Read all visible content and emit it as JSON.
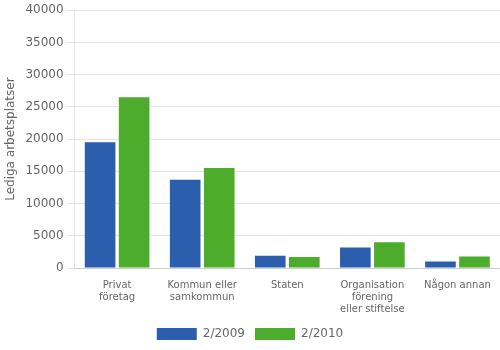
{
  "chart_data": {
    "type": "bar",
    "ylabel": "Lediga arbetsplatser",
    "categories": [
      "Privat\nföretag",
      "Kommun eller\nsamkommun",
      "Staten",
      "Organisation\nförening\neller stiftelse",
      "Någon annan"
    ],
    "series": [
      {
        "name": "2/2009",
        "color": "#2b5eac",
        "values": [
          19500,
          13700,
          1900,
          3200,
          1000
        ]
      },
      {
        "name": "2/2010",
        "color": "#4dac2b",
        "values": [
          26500,
          15500,
          1700,
          4000,
          1800
        ]
      }
    ],
    "ylim": [
      0,
      40000
    ],
    "yticks": [
      0,
      5000,
      10000,
      15000,
      20000,
      25000,
      30000,
      35000,
      40000
    ],
    "grid": true,
    "legend": "bottom"
  }
}
